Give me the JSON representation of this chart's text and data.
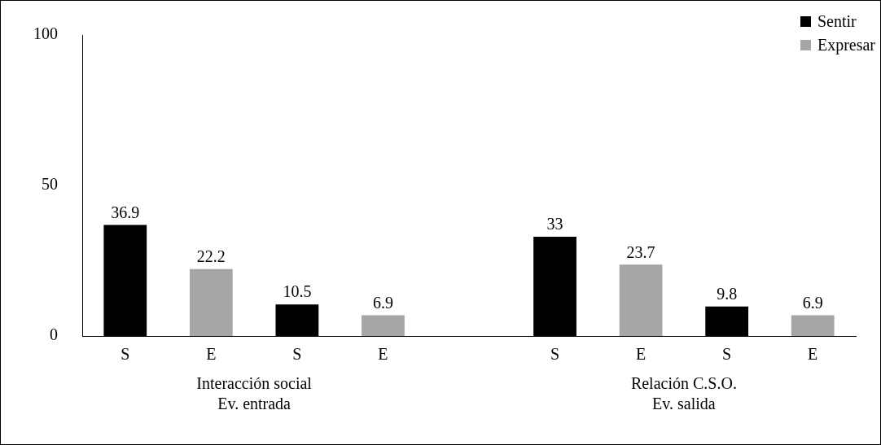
{
  "chart_data": {
    "type": "bar",
    "categories": [
      "S",
      "E",
      "S",
      "E",
      null,
      "S",
      "E",
      "S",
      "E"
    ],
    "series": [
      {
        "name": "Sentir",
        "color": "#000000",
        "values": [
          36.9,
          null,
          10.5,
          null,
          null,
          33,
          null,
          9.8,
          null
        ]
      },
      {
        "name": "Expresar",
        "color": "#a6a6a6",
        "values": [
          null,
          22.2,
          null,
          6.9,
          null,
          null,
          23.7,
          null,
          6.9
        ]
      }
    ],
    "ylim": [
      0,
      100
    ],
    "yticks": [
      0,
      50,
      100
    ],
    "grid": false,
    "legend": "top right",
    "data_labels": true,
    "annotations": [
      "Interacción social\nEv. entrada",
      "Relación C.S.O.\nEv. salida"
    ]
  }
}
